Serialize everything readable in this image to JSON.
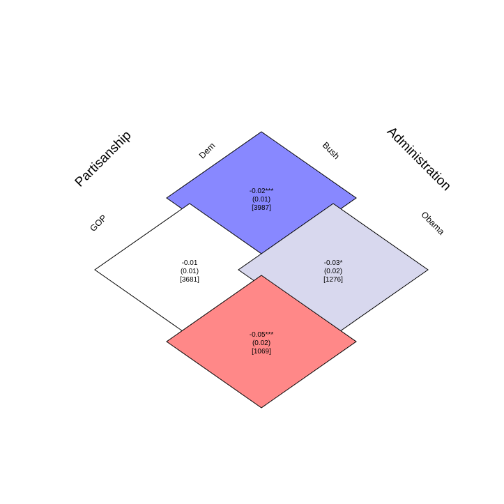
{
  "chart_data": {
    "type": "heatmap",
    "row_dimension": {
      "title": "Partisanship",
      "categories": [
        "Dem",
        "GOP"
      ]
    },
    "column_dimension": {
      "title": "Administration",
      "categories": [
        "Bush",
        "Obama"
      ]
    },
    "cells": [
      {
        "row": "Dem",
        "column": "Bush",
        "estimate": "-0.02***",
        "se": "(0.01)",
        "n": "[3987]",
        "value": -0.02,
        "color": "#8888ff"
      },
      {
        "row": "GOP",
        "column": "Bush",
        "estimate": "-0.01",
        "se": "(0.01)",
        "n": "[3681]",
        "value": -0.01,
        "color": "#ffffff"
      },
      {
        "row": "Dem",
        "column": "Obama",
        "estimate": "-0.03*",
        "se": "(0.02)",
        "n": "[1276]",
        "value": -0.03,
        "color": "#d8d8ee"
      },
      {
        "row": "GOP",
        "column": "Obama",
        "estimate": "-0.05***",
        "se": "(0.02)",
        "n": "[1069]",
        "value": -0.05,
        "color": "#ff8888"
      }
    ]
  }
}
